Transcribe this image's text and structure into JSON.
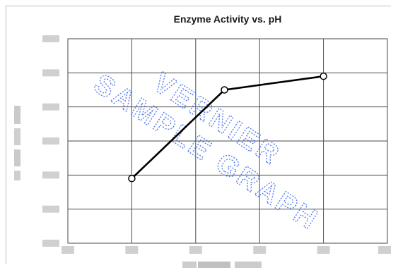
{
  "chart_data": {
    "type": "line",
    "title": "Enzyme Activity vs. pH",
    "xlabel": "",
    "ylabel": "",
    "xlim": [
      0,
      10
    ],
    "ylim": [
      0,
      6
    ],
    "grid": true,
    "x_ticks": [
      0,
      2,
      4,
      6,
      8,
      10
    ],
    "y_ticks": [
      0,
      1,
      2,
      3,
      4,
      5,
      6
    ],
    "tick_labels_legible": false,
    "series": [
      {
        "x": [
          2,
          4.9,
          8
        ],
        "y": [
          1.9,
          4.5,
          4.9
        ],
        "color": "#000000",
        "marker": "open-circle"
      }
    ],
    "watermark": [
      "VERNIER",
      "SAMPLE GRAPH"
    ]
  },
  "colors": {
    "grid": "#4a4a4a",
    "line": "#000000",
    "watermark": "#5a7ff0"
  }
}
